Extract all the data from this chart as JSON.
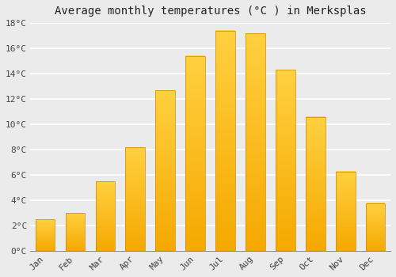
{
  "title": "Average monthly temperatures (°C ) in Merksplas",
  "months": [
    "Jan",
    "Feb",
    "Mar",
    "Apr",
    "May",
    "Jun",
    "Jul",
    "Aug",
    "Sep",
    "Oct",
    "Nov",
    "Dec"
  ],
  "values": [
    2.5,
    3.0,
    5.5,
    8.2,
    12.7,
    15.4,
    17.4,
    17.2,
    14.3,
    10.6,
    6.3,
    3.8
  ],
  "bar_color_bottom": "#F5A800",
  "bar_color_top": "#FFD040",
  "bar_edge_color": "#CC8800",
  "ylim": [
    0,
    18
  ],
  "yticks": [
    0,
    2,
    4,
    6,
    8,
    10,
    12,
    14,
    16,
    18
  ],
  "ytick_labels": [
    "0°C",
    "2°C",
    "4°C",
    "6°C",
    "8°C",
    "10°C",
    "12°C",
    "14°C",
    "16°C",
    "18°C"
  ],
  "background_color": "#ebebeb",
  "grid_color": "#ffffff",
  "title_fontsize": 10,
  "tick_fontsize": 8,
  "bar_width": 0.65,
  "n_gradient_steps": 80
}
